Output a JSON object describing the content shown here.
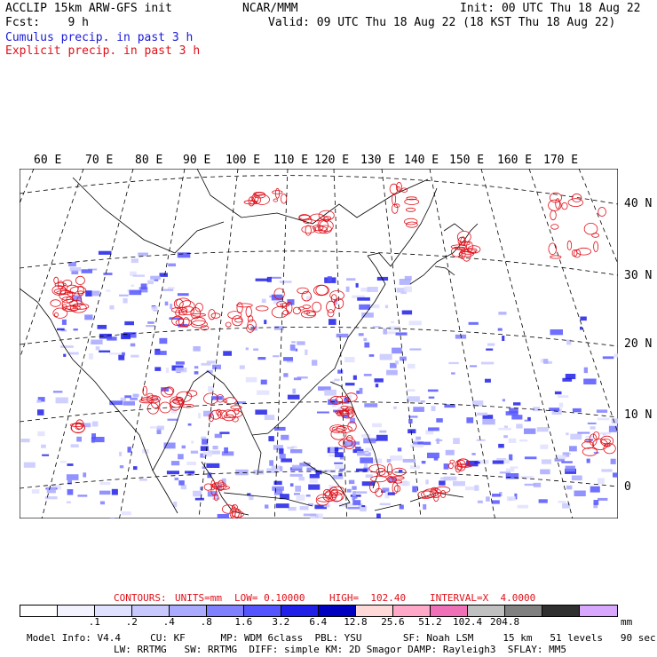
{
  "header": {
    "line1_left": "ACCLIP 15km ARW-GFS init",
    "line1_center": "NCAR/MMM",
    "line1_right": "Init: 00 UTC Thu 18 Aug 22",
    "line2_left": "Fcst:    9 h",
    "line2_right": "Valid: 09 UTC Thu 18 Aug 22 (18 KST Thu 18 Aug 22)",
    "legend_cumulus": "Cumulus precip. in past 3 h",
    "legend_explicit": "Explicit precip. in past 3 h"
  },
  "map": {
    "longitude_labels": [
      "60 E",
      "70 E",
      "80 E",
      "90 E",
      "100 E",
      "110 E",
      "120 E",
      "130 E",
      "140 E",
      "150 E",
      "160 E",
      "170 E"
    ],
    "latitude_labels": [
      "40 N",
      "30 N",
      "20 N",
      "10 N",
      "0"
    ],
    "colors": {
      "cumulus": "#1a1ad8",
      "explicit": "#e0101a",
      "coast": "#000000",
      "grid": "#000000"
    }
  },
  "contour_info": {
    "contours": "CONTOURS:",
    "units": "UNITS=mm",
    "low": "LOW= 0.10000",
    "high": "HIGH=  102.40",
    "interval": "INTERVAL=X  4.0000"
  },
  "colorbar": {
    "colors": [
      "#ffffff",
      "#f3f3ff",
      "#e0e0ff",
      "#c8c8ff",
      "#aaaaff",
      "#8080ff",
      "#5555ff",
      "#2020e8",
      "#0000c0",
      "#ffd8d8",
      "#ffa8c8",
      "#f070b8",
      "#c0c0c0",
      "#808080",
      "#303030",
      "#d8a8ff"
    ],
    "ticks": [
      ".1",
      ".2",
      ".4",
      ".8",
      "1.6",
      "3.2",
      "6.4",
      "12.8",
      "25.6",
      "51.2",
      "102.4",
      "204.8"
    ],
    "unit": "mm"
  },
  "footer": {
    "line1": "Model Info: V4.4     CU: KF      MP: WDM 6class  PBL: YSU       SF: Noah LSM     15 km   51 levels   90 sec",
    "line2": "LW: RRTMG   SW: RRTMG  DIFF: simple KM: 2D Smagor DAMP: Rayleigh3  SFLAY: MM5"
  }
}
